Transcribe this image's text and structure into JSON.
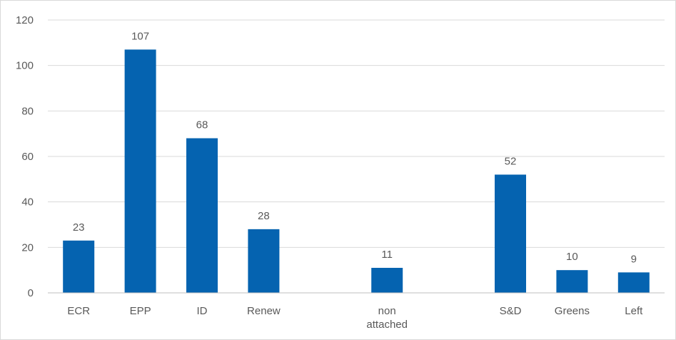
{
  "chart_data": {
    "type": "bar",
    "title": "",
    "xlabel": "",
    "ylabel": "",
    "categories": [
      "ECR",
      "EPP",
      "ID",
      "Renew",
      "",
      "non attached",
      "",
      "S&D",
      "Greens",
      "Left"
    ],
    "category_lines": [
      [
        "ECR"
      ],
      [
        "EPP"
      ],
      [
        "ID"
      ],
      [
        "Renew"
      ],
      [],
      [
        "non",
        "attached"
      ],
      [],
      [
        "S&D"
      ],
      [
        "Greens"
      ],
      [
        "Left"
      ]
    ],
    "values": [
      23,
      107,
      68,
      28,
      null,
      11,
      null,
      52,
      10,
      9
    ],
    "data_labels": [
      "23",
      "107",
      "68",
      "28",
      "",
      "11",
      "",
      "52",
      "10",
      "9"
    ],
    "ylim": [
      0,
      120
    ],
    "yticks": [
      0,
      20,
      40,
      60,
      80,
      100,
      120
    ],
    "grid": true,
    "legend": "none",
    "bar_color": "#0563b0"
  }
}
